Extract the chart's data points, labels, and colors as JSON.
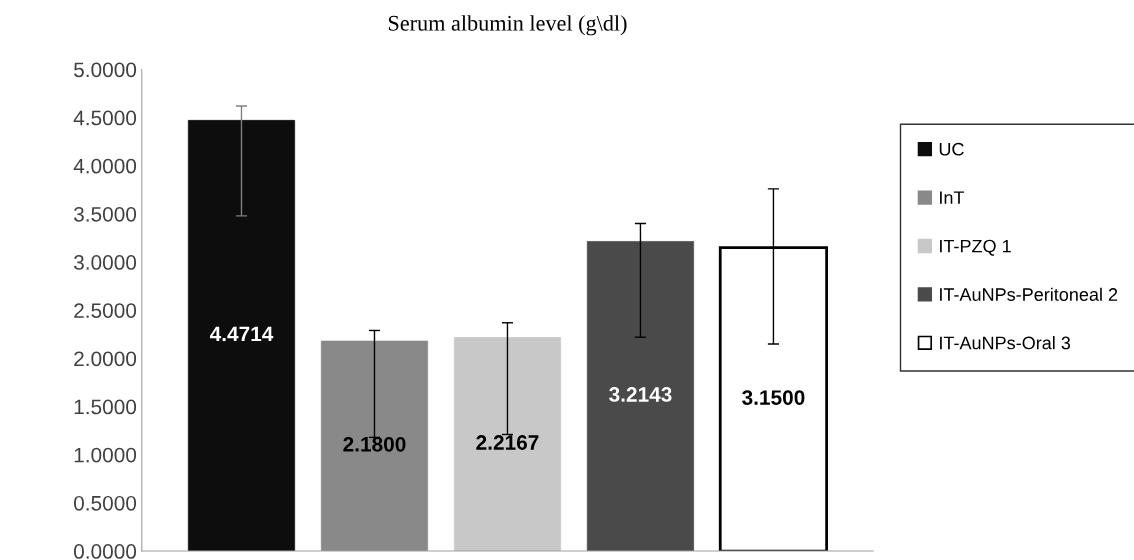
{
  "chart_data": {
    "type": "bar",
    "title": "Serum albumin level (g\\dl)",
    "categories": [
      null
    ],
    "series": [
      {
        "name": "UC",
        "color": "#0d0d0d",
        "values": [
          4.4714
        ],
        "value_labels": [
          "4.4714"
        ],
        "errors": [
          [
            3.48,
            4.62
          ]
        ]
      },
      {
        "name": "InT",
        "color": "#898989",
        "values": [
          2.18
        ],
        "value_labels": [
          "2.1800"
        ],
        "errors": [
          [
            1.18,
            2.29
          ]
        ]
      },
      {
        "name": "IT-PZQ 1",
        "color": "#c8c8c8",
        "values": [
          2.2167
        ],
        "value_labels": [
          "2.2167"
        ],
        "errors": [
          [
            1.21,
            2.37
          ]
        ]
      },
      {
        "name": "IT-AuNPs-Peritoneal 2",
        "color": "#4a4a4a",
        "values": [
          3.2143
        ],
        "value_labels": [
          "3.2143"
        ],
        "errors": [
          [
            2.22,
            3.4
          ]
        ]
      },
      {
        "name": "IT-AuNPs-Oral 3",
        "color": "#ffffff",
        "values": [
          3.15
        ],
        "value_labels": [
          "3.1500"
        ],
        "errors": [
          [
            2.15,
            3.76
          ]
        ]
      }
    ],
    "ylim": [
      0,
      5
    ],
    "yticks": [
      {
        "value": 0,
        "label": "0.0000"
      },
      {
        "value": 0.5,
        "label": "0.5000"
      },
      {
        "value": 1,
        "label": "1.0000"
      },
      {
        "value": 1.5,
        "label": "1.5000"
      },
      {
        "value": 2,
        "label": "2.0000"
      },
      {
        "value": 2.5,
        "label": "2.5000"
      },
      {
        "value": 3,
        "label": "3.0000"
      },
      {
        "value": 3.5,
        "label": "3.5000"
      },
      {
        "value": 4,
        "label": "4.0000"
      },
      {
        "value": 4.5,
        "label": "4.5000"
      },
      {
        "value": 5,
        "label": "5.0000"
      }
    ],
    "grid": false,
    "legend": "right"
  }
}
